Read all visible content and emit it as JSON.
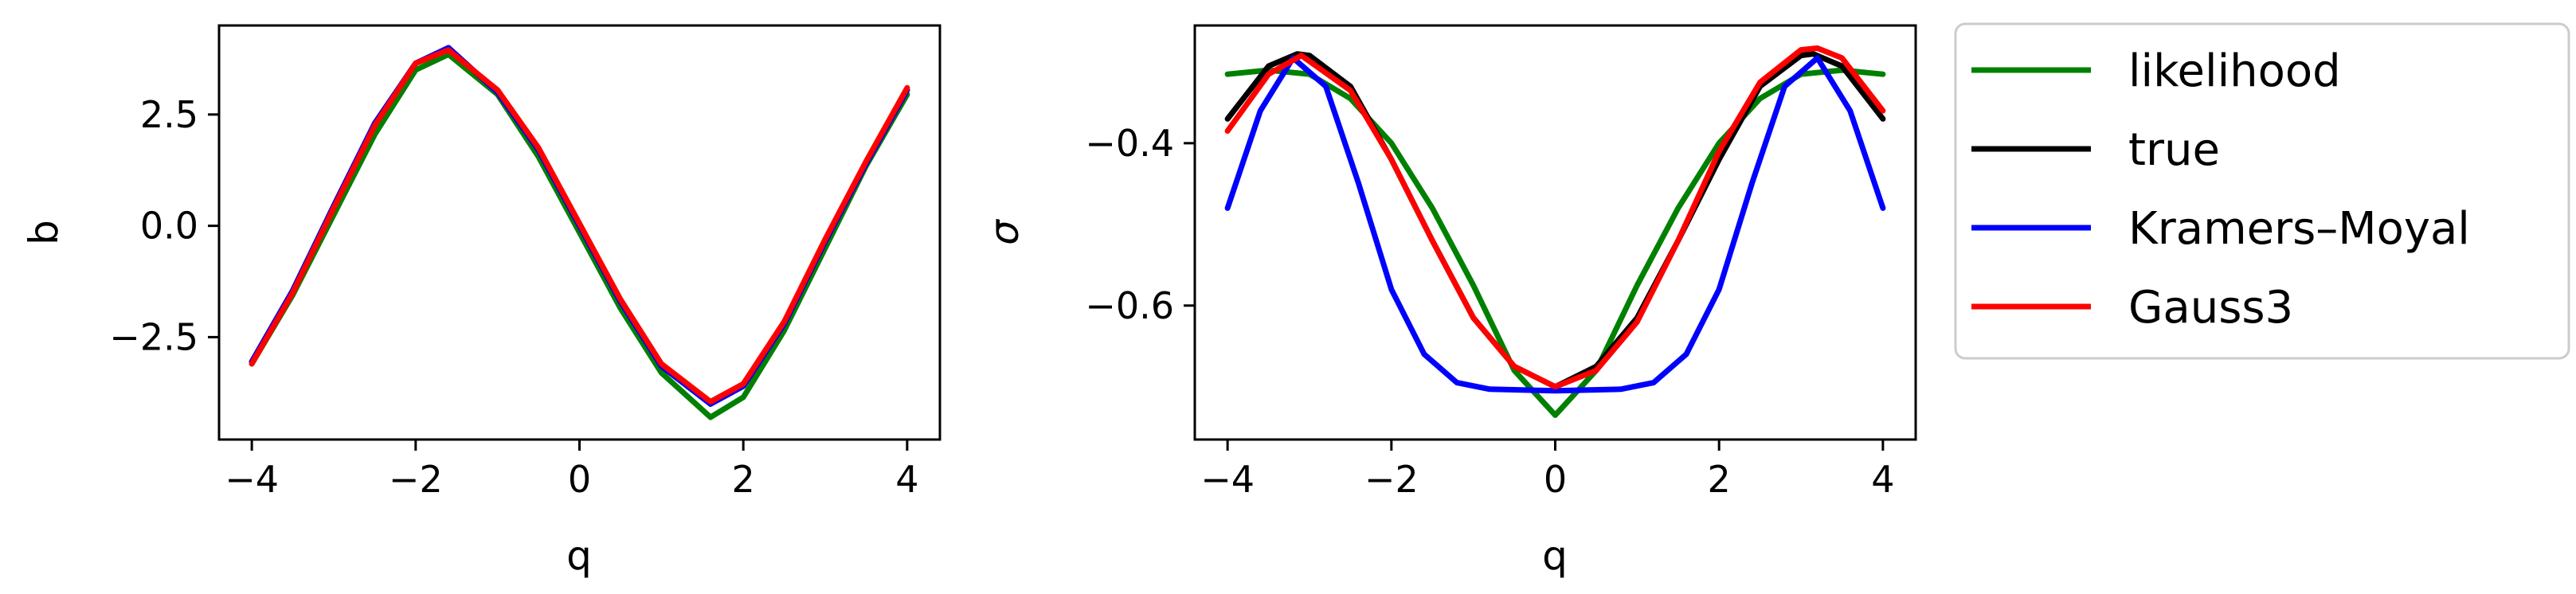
{
  "chart_data": [
    {
      "type": "line",
      "xlabel": "q",
      "ylabel": "b",
      "xlim": [
        -4.4,
        4.4
      ],
      "ylim": [
        -4.8,
        4.5
      ],
      "xticks": [
        -4,
        -2,
        0,
        2,
        4
      ],
      "xtick_labels": [
        "−4",
        "−2",
        "0",
        "2",
        "4"
      ],
      "yticks": [
        -2.5,
        0.0,
        2.5
      ],
      "ytick_labels": [
        "−2.5",
        "0.0",
        "2.5"
      ],
      "grid": false,
      "series": [
        {
          "name": "likelihood",
          "color": "#008000",
          "x": [
            -4,
            -3.5,
            -3,
            -2.5,
            -2,
            -1.6,
            -1,
            -0.5,
            0,
            0.5,
            1,
            1.6,
            2,
            2.5,
            3,
            3.5,
            4
          ],
          "y": [
            -3.1,
            -1.55,
            0.25,
            2.05,
            3.5,
            3.85,
            2.95,
            1.55,
            -0.15,
            -1.85,
            -3.3,
            -4.3,
            -3.85,
            -2.35,
            -0.5,
            1.35,
            2.95
          ]
        },
        {
          "name": "true",
          "color": "#000000",
          "x": [
            -4,
            -3.5,
            -3,
            -2.5,
            -2,
            -1.6,
            -1,
            -0.5,
            0,
            0.5,
            1,
            1.6,
            2,
            2.5,
            3,
            3.5,
            4
          ],
          "y": [
            -3.05,
            -1.45,
            0.45,
            2.3,
            3.65,
            4.0,
            3.0,
            1.7,
            0.0,
            -1.7,
            -3.15,
            -4.0,
            -3.6,
            -2.2,
            -0.35,
            1.4,
            3.05
          ]
        },
        {
          "name": "Kramers–Moyal",
          "color": "#0000ff",
          "x": [
            -4,
            -3.5,
            -3,
            -2.5,
            -2,
            -1.6,
            -1,
            -0.5,
            0,
            0.5,
            1,
            1.6,
            2,
            2.5,
            3,
            3.5,
            4
          ],
          "y": [
            -3.05,
            -1.45,
            0.45,
            2.3,
            3.65,
            4.0,
            3.0,
            1.7,
            0.0,
            -1.7,
            -3.15,
            -4.0,
            -3.6,
            -2.2,
            -0.35,
            1.4,
            3.05
          ]
        },
        {
          "name": "Gauss3",
          "color": "#ff0000",
          "x": [
            -4,
            -3.5,
            -3,
            -2.5,
            -2,
            -1.6,
            -1,
            -0.5,
            0,
            0.5,
            1,
            1.6,
            2,
            2.5,
            3,
            3.5,
            4
          ],
          "y": [
            -3.1,
            -1.5,
            0.4,
            2.25,
            3.65,
            3.95,
            3.05,
            1.75,
            0.05,
            -1.65,
            -3.1,
            -3.95,
            -3.55,
            -2.15,
            -0.3,
            1.45,
            3.1
          ]
        }
      ]
    },
    {
      "type": "line",
      "xlabel": "q",
      "ylabel": "σ",
      "xlim": [
        -4.4,
        4.4
      ],
      "ylim": [
        -0.765,
        -0.255
      ],
      "xticks": [
        -4,
        -2,
        0,
        2,
        4
      ],
      "xtick_labels": [
        "−4",
        "−2",
        "0",
        "2",
        "4"
      ],
      "yticks": [
        -0.6,
        -0.4
      ],
      "ytick_labels": [
        "−0.6",
        "−0.4"
      ],
      "grid": false,
      "series": [
        {
          "name": "likelihood",
          "color": "#008000",
          "x": [
            -4,
            -3.5,
            -3,
            -2.5,
            -2,
            -1.5,
            -1,
            -0.5,
            0,
            0.5,
            1,
            1.5,
            2,
            2.5,
            3,
            3.5,
            4
          ],
          "y": [
            -0.315,
            -0.31,
            -0.315,
            -0.345,
            -0.4,
            -0.48,
            -0.575,
            -0.68,
            -0.735,
            -0.68,
            -0.575,
            -0.48,
            -0.4,
            -0.345,
            -0.315,
            -0.31,
            -0.315
          ]
        },
        {
          "name": "true",
          "color": "#000000",
          "x": [
            -4,
            -3.5,
            -3.15,
            -3,
            -2.5,
            -2,
            -1.5,
            -1,
            -0.5,
            0,
            0.5,
            1,
            1.5,
            2,
            2.5,
            3,
            3.15,
            3.5,
            4
          ],
          "y": [
            -0.37,
            -0.305,
            -0.29,
            -0.292,
            -0.33,
            -0.42,
            -0.52,
            -0.615,
            -0.675,
            -0.7,
            -0.675,
            -0.615,
            -0.52,
            -0.42,
            -0.33,
            -0.292,
            -0.29,
            -0.305,
            -0.37
          ]
        },
        {
          "name": "Kramers–Moyal",
          "color": "#0000ff",
          "x": [
            -4,
            -3.6,
            -3.2,
            -2.8,
            -2.4,
            -2,
            -1.6,
            -1.2,
            -0.8,
            0,
            0.8,
            1.2,
            1.6,
            2,
            2.4,
            2.8,
            3.2,
            3.6,
            4
          ],
          "y": [
            -0.48,
            -0.36,
            -0.295,
            -0.33,
            -0.45,
            -0.58,
            -0.66,
            -0.695,
            -0.703,
            -0.705,
            -0.703,
            -0.695,
            -0.66,
            -0.58,
            -0.45,
            -0.33,
            -0.295,
            -0.36,
            -0.48
          ]
        },
        {
          "name": "Gauss3",
          "color": "#ff0000",
          "x": [
            -4,
            -3.5,
            -3.1,
            -2.5,
            -2,
            -1.5,
            -1,
            -0.5,
            0,
            0.5,
            1,
            1.5,
            2,
            2.5,
            3,
            3.2,
            3.5,
            4
          ],
          "y": [
            -0.385,
            -0.315,
            -0.292,
            -0.335,
            -0.42,
            -0.52,
            -0.615,
            -0.675,
            -0.7,
            -0.68,
            -0.62,
            -0.52,
            -0.41,
            -0.325,
            -0.285,
            -0.283,
            -0.295,
            -0.36
          ]
        }
      ]
    }
  ],
  "legend": {
    "position": "outside-right",
    "entries": [
      {
        "label": "likelihood",
        "color": "#008000"
      },
      {
        "label": "true",
        "color": "#000000"
      },
      {
        "label": "Kramers–Moyal",
        "color": "#0000ff"
      },
      {
        "label": "Gauss3",
        "color": "#ff0000"
      }
    ]
  }
}
